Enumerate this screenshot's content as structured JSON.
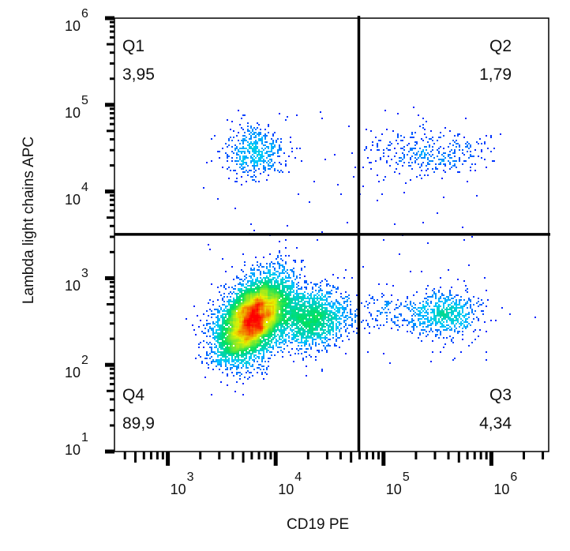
{
  "chart_data": {
    "type": "scatter",
    "style": "density dot plot",
    "xlabel": "CD19 PE",
    "ylabel": "Lambda light chains APC",
    "x_scale": "log",
    "y_scale": "log",
    "xlim": [
      320,
      3400000
    ],
    "ylim": [
      10,
      1000000
    ],
    "x_ticks": [
      {
        "base": "10",
        "exp": "3",
        "value": 1000
      },
      {
        "base": "10",
        "exp": "4",
        "value": 10000
      },
      {
        "base": "10",
        "exp": "5",
        "value": 100000
      },
      {
        "base": "10",
        "exp": "6",
        "value": 1000000
      }
    ],
    "y_ticks": [
      {
        "base": "10",
        "exp": "1",
        "value": 10
      },
      {
        "base": "10",
        "exp": "2",
        "value": 100
      },
      {
        "base": "10",
        "exp": "3",
        "value": 1000
      },
      {
        "base": "10",
        "exp": "4",
        "value": 10000
      },
      {
        "base": "10",
        "exp": "5",
        "value": 100000
      },
      {
        "base": "10",
        "exp": "6",
        "value": 1000000
      }
    ],
    "gate": {
      "x": 59000,
      "y": 3200
    },
    "quadrants": [
      {
        "name": "Q1",
        "percent": "3,95",
        "position": "top-left"
      },
      {
        "name": "Q2",
        "percent": "1,79",
        "position": "top-right"
      },
      {
        "name": "Q3",
        "percent": "4,34",
        "position": "bottom-right"
      },
      {
        "name": "Q4",
        "percent": "89,9",
        "position": "bottom-left"
      }
    ],
    "populations": [
      {
        "center_x": 6300,
        "center_y": 340,
        "sd_log_x": 0.17,
        "sd_log_y": 0.24,
        "corr": 0.45,
        "count": 7000
      },
      {
        "center_x": 22000,
        "center_y": 340,
        "sd_log_x": 0.16,
        "sd_log_y": 0.17,
        "corr": 0.1,
        "count": 1500
      },
      {
        "center_x": 120000,
        "center_y": 400,
        "sd_log_x": 0.35,
        "sd_log_y": 0.12,
        "corr": 0,
        "count": 250
      },
      {
        "center_x": 380000,
        "center_y": 380,
        "sd_log_x": 0.15,
        "sd_log_y": 0.13,
        "corr": 0,
        "count": 600
      },
      {
        "center_x": 6400,
        "center_y": 29000,
        "sd_log_x": 0.14,
        "sd_log_y": 0.15,
        "corr": 0,
        "count": 450
      },
      {
        "center_x": 250000,
        "center_y": 28000,
        "sd_log_x": 0.3,
        "sd_log_y": 0.13,
        "corr": 0,
        "count": 330
      }
    ],
    "colormap": [
      "#0000ff",
      "#00c8ff",
      "#00e060",
      "#e8f000",
      "#ff0000"
    ],
    "grid": false
  }
}
